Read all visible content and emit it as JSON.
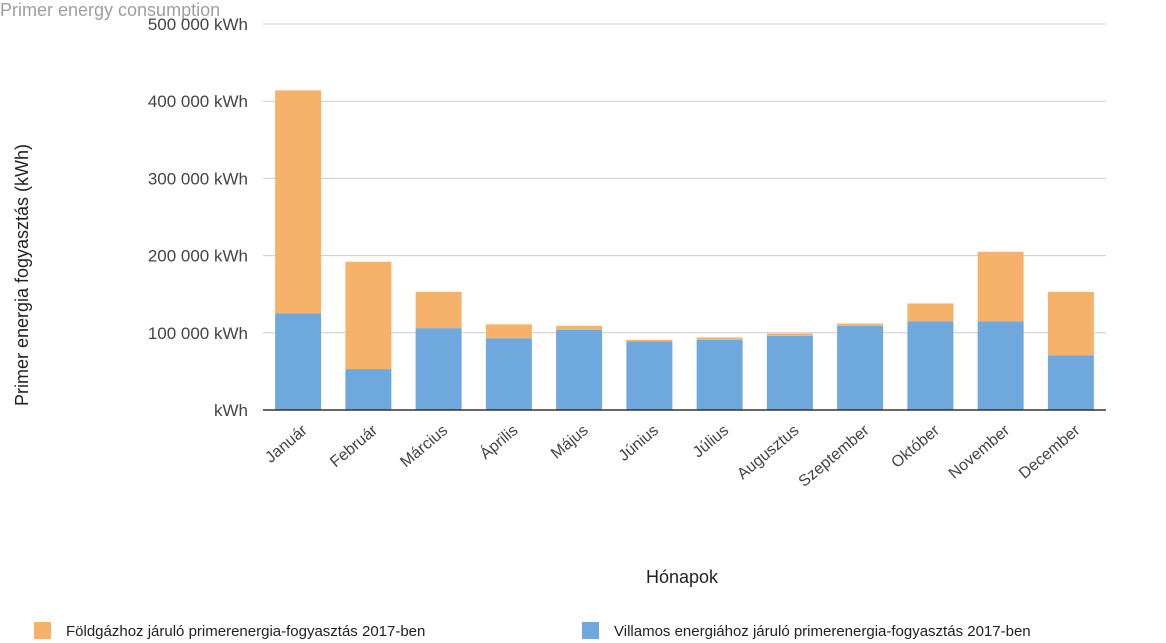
{
  "chart_data": {
    "type": "bar",
    "stacked": true,
    "title": "Primer energy consumption",
    "xlabel": "Hónapok",
    "ylabel": "Primer energia fogyasztás (kWh)",
    "ylim": [
      0,
      500000
    ],
    "yticks": [
      {
        "value": 0,
        "label": "kWh"
      },
      {
        "value": 100000,
        "label": "100 000 kWh"
      },
      {
        "value": 200000,
        "label": "200 000 kWh"
      },
      {
        "value": 300000,
        "label": "300 000 kWh"
      },
      {
        "value": 400000,
        "label": "400 000 kWh"
      },
      {
        "value": 500000,
        "label": "500 000 kWh"
      }
    ],
    "grid": true,
    "legend_position": "bottom",
    "categories": [
      "Január",
      "Február",
      "Március",
      "Április",
      "Május",
      "Június",
      "Július",
      "Augusztus",
      "Szeptember",
      "Október",
      "November",
      "December"
    ],
    "series": [
      {
        "name": "Villamos energiához járuló primerenergia-fogyasztás 2017-ben",
        "color": "#6fa8dc",
        "values": [
          125000,
          53000,
          106000,
          93000,
          104000,
          89000,
          91000,
          96000,
          109000,
          115000,
          115000,
          71000
        ]
      },
      {
        "name": "Földgázhoz járuló primerenergia-fogyasztás 2017-ben",
        "color": "#f6b26b",
        "values": [
          289000,
          139000,
          47000,
          18000,
          5000,
          2000,
          3000,
          3000,
          3000,
          23000,
          90000,
          82000
        ]
      }
    ],
    "legend_order": [
      1,
      0
    ]
  }
}
